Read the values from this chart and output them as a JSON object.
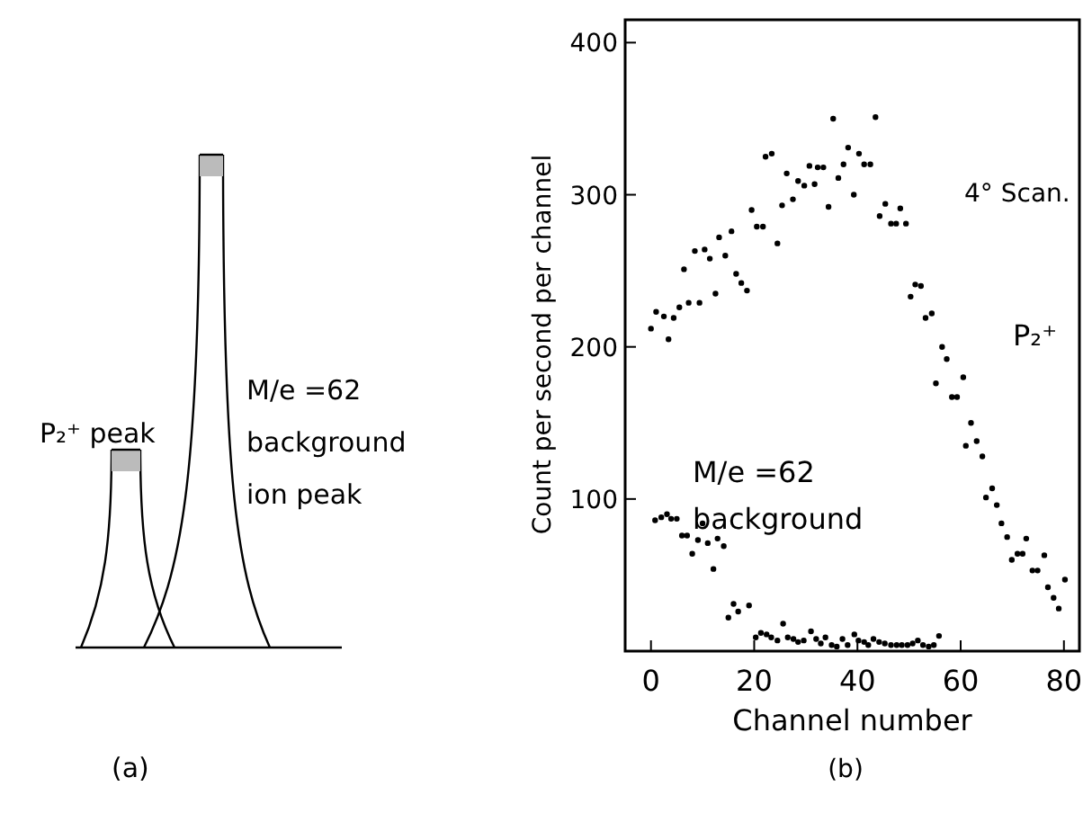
{
  "chart_data": [
    {
      "type": "other",
      "annotations": [
        "P₂⁺ peak",
        "M/e =62\nbackground\nion peak",
        "(a)"
      ]
    },
    {
      "type": "scatter",
      "xlabel": "Channel number",
      "ylabel": "Count per second per channel",
      "annotations": [
        "4° Scan.",
        "(b)"
      ],
      "xlim": [
        -5,
        83
      ],
      "ylim": [
        0,
        415
      ],
      "xticks": [
        0,
        20,
        40,
        60,
        80
      ],
      "yticks": [
        100,
        200,
        300,
        400
      ],
      "grid": false,
      "marker": "circle",
      "series": [
        {
          "name": "P₂⁺",
          "color": "#000000",
          "x": [
            0,
            1,
            2.5,
            3.4,
            4.4,
            5.5,
            6.4,
            7.3,
            8.5,
            9.4,
            10.4,
            11.4,
            12.5,
            13.2,
            14.4,
            15.6,
            16.5,
            17.5,
            18.6,
            19.5,
            20.5,
            21.7,
            22.2,
            23.4,
            24.5,
            25.4,
            26.3,
            27.5,
            28.5,
            29.7,
            30.7,
            31.7,
            32.3,
            33.4,
            34.4,
            35.3,
            36.3,
            37.3,
            38.2,
            39.3,
            40.3,
            41.3,
            42.5,
            43.5,
            44.3,
            45.4,
            46.5,
            47.5,
            48.3,
            49.4,
            50.3,
            51.2,
            52.3,
            53.2,
            54.4,
            55.2,
            56.4,
            57.3,
            58.3,
            59.3,
            60.5,
            61,
            62,
            63.1,
            64.2,
            64.9,
            66.1,
            67,
            67.9,
            69,
            69.9,
            71,
            72,
            72.7,
            73.9,
            74.9,
            76.2,
            76.9,
            78,
            79,
            80.2
          ],
          "values": [
            212,
            223,
            220,
            205,
            219,
            226,
            251,
            229,
            263,
            229,
            264,
            258,
            235,
            272,
            260,
            276,
            248,
            242,
            237,
            290,
            279,
            279,
            325,
            327,
            268,
            293,
            314,
            297,
            309,
            306,
            319,
            307,
            318,
            318,
            292,
            350,
            311,
            320,
            331,
            300,
            327,
            320,
            320,
            351,
            286,
            294,
            281,
            281,
            291,
            281,
            233,
            241,
            240,
            219,
            222,
            176,
            200,
            192,
            167,
            167,
            180,
            135,
            150,
            138,
            128,
            101,
            107,
            96,
            84,
            75,
            60,
            64,
            64,
            74,
            53,
            53,
            63,
            42,
            35,
            28,
            47
          ]
        },
        {
          "name": "M/e =62\nbackground",
          "color": "#000000",
          "x": [
            0.8,
            2,
            3.1,
            3.9,
            5,
            6,
            7,
            8,
            9.1,
            10,
            11,
            12.1,
            12.9,
            14.1,
            15,
            16,
            16.9,
            19,
            20.3,
            21.3,
            22.4,
            23.3,
            24.5,
            25.6,
            26.5,
            27.6,
            28.5,
            29.6,
            31,
            32,
            32.9,
            33.8,
            35,
            36,
            37.1,
            38.1,
            39.4,
            40.2,
            41.3,
            42.1,
            43.1,
            44.2,
            45.3,
            46.5,
            47.6,
            48.6,
            49.7,
            50.7,
            51.7,
            52.7,
            53.8,
            54.8,
            55.8
          ],
          "values": [
            86,
            88,
            90,
            87,
            87,
            76,
            76,
            64,
            73,
            84,
            71,
            54,
            74,
            69,
            22,
            31,
            26,
            30,
            9,
            12,
            11,
            9,
            7,
            18,
            9,
            8,
            6,
            7,
            13,
            8,
            5,
            9,
            4,
            3,
            8,
            4,
            11,
            7,
            6,
            4,
            8,
            6,
            5,
            4,
            4,
            4,
            4,
            5,
            7,
            4,
            3,
            4,
            10
          ]
        }
      ]
    }
  ]
}
